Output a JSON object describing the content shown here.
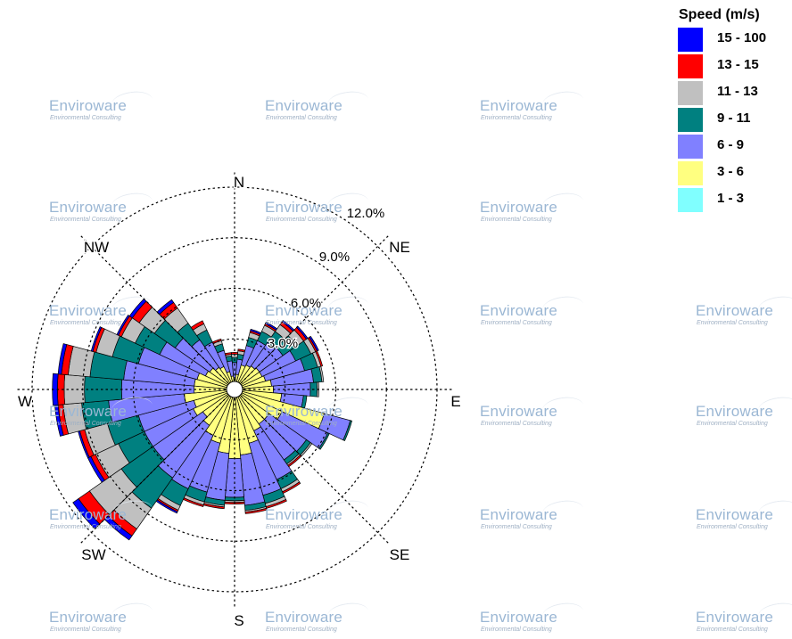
{
  "chart_data": {
    "type": "wind rose",
    "legend_title": "Speed (m/s)",
    "legend_placement": "top-right",
    "bins": [
      {
        "label": "1 - 3",
        "color": "#80ffff"
      },
      {
        "label": "3 - 6",
        "color": "#ffff80"
      },
      {
        "label": "6 - 9",
        "color": "#8080ff"
      },
      {
        "label": "9 - 11",
        "color": "#008080"
      },
      {
        "label": "11 - 13",
        "color": "#c0c0c0"
      },
      {
        "label": "13 - 15",
        "color": "#ff0000"
      },
      {
        "label": "15 - 100",
        "color": "#0000ff"
      }
    ],
    "direction_labels": [
      "N",
      "NE",
      "E",
      "SE",
      "S",
      "SW",
      "W",
      "NW"
    ],
    "ring_labels": [
      "3.0%",
      "6.0%",
      "9.0%",
      "12.0%"
    ],
    "ring_values": [
      3,
      6,
      9,
      12
    ],
    "max_percent": 12,
    "sectors": [
      {
        "dir_deg": 0,
        "values": [
          0.3,
          0.4,
          0.9,
          0.3,
          0.2,
          0.1,
          0.0
        ]
      },
      {
        "dir_deg": 10,
        "values": [
          0.3,
          0.6,
          0.9,
          0.3,
          0.2,
          0.1,
          0.0
        ]
      },
      {
        "dir_deg": 20,
        "values": [
          0.3,
          1.2,
          1.2,
          0.5,
          0.3,
          0.1,
          0.1
        ]
      },
      {
        "dir_deg": 30,
        "values": [
          0.3,
          1.3,
          1.6,
          0.6,
          0.4,
          0.1,
          0.1
        ]
      },
      {
        "dir_deg": 40,
        "values": [
          0.3,
          1.4,
          1.7,
          0.8,
          0.5,
          0.2,
          0.1
        ]
      },
      {
        "dir_deg": 50,
        "values": [
          0.3,
          1.5,
          1.7,
          1.0,
          0.5,
          0.2,
          0.1
        ]
      },
      {
        "dir_deg": 60,
        "values": [
          0.3,
          1.5,
          2.2,
          1.0,
          0.3,
          0.1,
          0.1
        ]
      },
      {
        "dir_deg": 70,
        "values": [
          0.3,
          1.6,
          2.4,
          0.8,
          0.2,
          0.1,
          0.0
        ]
      },
      {
        "dir_deg": 80,
        "values": [
          0.3,
          1.9,
          2.5,
          0.5,
          0.1,
          0.0,
          0.0
        ]
      },
      {
        "dir_deg": 90,
        "values": [
          0.3,
          2.0,
          2.2,
          0.4,
          0.1,
          0.0,
          0.0
        ]
      },
      {
        "dir_deg": 100,
        "values": [
          0.4,
          2.4,
          1.3,
          0.2,
          0.0,
          0.0,
          0.0
        ]
      },
      {
        "dir_deg": 110,
        "values": [
          0.4,
          5.1,
          1.6,
          0.1,
          0.0,
          0.0,
          0.0
        ]
      },
      {
        "dir_deg": 120,
        "values": [
          0.3,
          2.8,
          3.0,
          0.1,
          0.0,
          0.0,
          0.0
        ]
      },
      {
        "dir_deg": 130,
        "values": [
          0.3,
          2.2,
          2.7,
          0.3,
          0.1,
          0.0,
          0.0
        ]
      },
      {
        "dir_deg": 140,
        "values": [
          0.3,
          2.2,
          2.6,
          0.3,
          0.1,
          0.1,
          0.0
        ]
      },
      {
        "dir_deg": 150,
        "values": [
          0.3,
          2.4,
          3.2,
          0.6,
          0.2,
          0.1,
          0.0
        ]
      },
      {
        "dir_deg": 160,
        "values": [
          0.3,
          3.0,
          3.2,
          0.5,
          0.2,
          0.1,
          0.0
        ]
      },
      {
        "dir_deg": 170,
        "values": [
          0.3,
          3.6,
          3.0,
          0.3,
          0.1,
          0.1,
          0.0
        ]
      },
      {
        "dir_deg": 180,
        "values": [
          0.3,
          3.8,
          2.3,
          0.2,
          0.1,
          0.1,
          0.0
        ]
      },
      {
        "dir_deg": 190,
        "values": [
          0.3,
          3.5,
          2.8,
          0.3,
          0.1,
          0.1,
          0.0
        ]
      },
      {
        "dir_deg": 200,
        "values": [
          0.3,
          3.0,
          3.0,
          0.6,
          0.2,
          0.1,
          0.0
        ]
      },
      {
        "dir_deg": 210,
        "values": [
          0.3,
          2.7,
          3.5,
          1.1,
          0.3,
          0.1,
          0.1
        ]
      },
      {
        "dir_deg": 220,
        "values": [
          0.3,
          2.3,
          3.8,
          2.2,
          1.5,
          0.5,
          0.3
        ]
      },
      {
        "dir_deg": 230,
        "values": [
          0.3,
          2.0,
          3.6,
          2.3,
          2.3,
          0.8,
          0.4
        ]
      },
      {
        "dir_deg": 240,
        "values": [
          0.3,
          2.4,
          3.2,
          1.7,
          1.5,
          0.3,
          0.2
        ]
      },
      {
        "dir_deg": 250,
        "values": [
          0.3,
          2.2,
          3.4,
          1.9,
          1.4,
          0.3,
          0.1
        ]
      },
      {
        "dir_deg": 260,
        "values": [
          0.3,
          2.7,
          4.5,
          1.6,
          1.1,
          0.3,
          0.2
        ]
      },
      {
        "dir_deg": 270,
        "values": [
          0.3,
          2.1,
          4.3,
          2.2,
          1.2,
          0.4,
          0.3
        ]
      },
      {
        "dir_deg": 280,
        "values": [
          0.3,
          2.1,
          4.2,
          2.0,
          1.3,
          0.4,
          0.2
        ]
      },
      {
        "dir_deg": 290,
        "values": [
          0.3,
          2.0,
          3.6,
          1.6,
          1.0,
          0.2,
          0.1
        ]
      },
      {
        "dir_deg": 300,
        "values": [
          0.3,
          1.6,
          3.0,
          1.6,
          0.9,
          0.2,
          0.1
        ]
      },
      {
        "dir_deg": 310,
        "values": [
          0.3,
          1.5,
          2.5,
          1.5,
          1.1,
          0.5,
          0.2
        ]
      },
      {
        "dir_deg": 320,
        "values": [
          0.3,
          1.3,
          2.0,
          1.2,
          1.1,
          0.4,
          0.2
        ]
      },
      {
        "dir_deg": 330,
        "values": [
          0.3,
          1.2,
          1.6,
          0.8,
          0.4,
          0.2,
          0.0
        ]
      },
      {
        "dir_deg": 340,
        "values": [
          0.3,
          0.8,
          1.3,
          0.4,
          0.2,
          0.1,
          0.0
        ]
      },
      {
        "dir_deg": 350,
        "values": [
          0.3,
          0.5,
          0.9,
          0.3,
          0.1,
          0.1,
          0.0
        ]
      }
    ]
  },
  "watermark": {
    "name": "Enviroware",
    "tagline": "Environmental Consulting"
  }
}
